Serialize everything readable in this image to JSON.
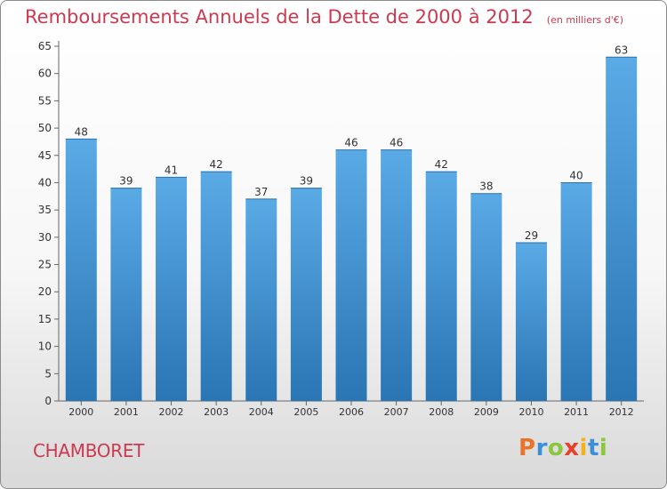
{
  "header": {
    "title": "Remboursements Annuels de la Dette de 2000 à 2012",
    "unit": "(en milliers d'€)"
  },
  "footer": {
    "commune": "CHAMBORET",
    "brand": "Proxiti"
  },
  "colors": {
    "bar_top": "#5aaae6",
    "bar_bottom": "#2a75b3",
    "title": "#cc3a4f"
  },
  "chart_data": {
    "type": "bar",
    "categories": [
      "2000",
      "2001",
      "2002",
      "2003",
      "2004",
      "2005",
      "2006",
      "2007",
      "2008",
      "2009",
      "2010",
      "2011",
      "2012"
    ],
    "values": [
      48,
      39,
      41,
      42,
      37,
      39,
      46,
      46,
      42,
      38,
      29,
      40,
      63
    ],
    "ylim": [
      0,
      65
    ],
    "yticks": [
      0,
      5,
      10,
      15,
      20,
      25,
      30,
      35,
      40,
      45,
      50,
      55,
      60,
      65
    ],
    "grid": false,
    "legend": "none"
  }
}
